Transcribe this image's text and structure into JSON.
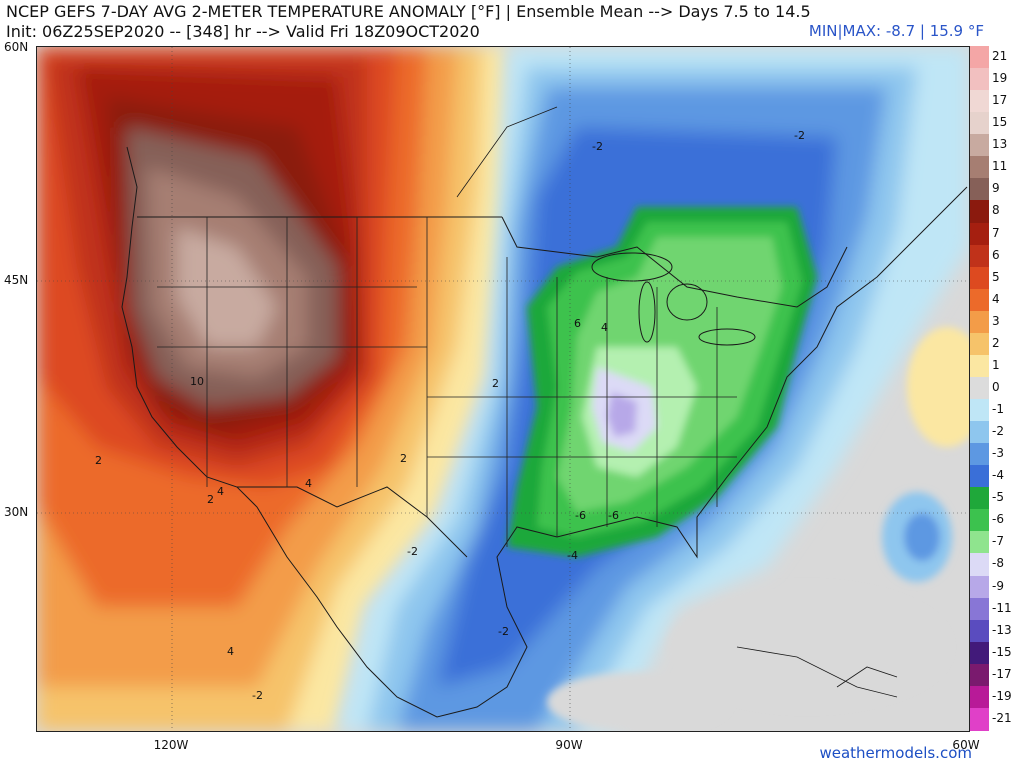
{
  "header": {
    "title": "NCEP GEFS 7-DAY AVG 2-METER TEMPERATURE ANOMALY [°F] | Ensemble Mean --> Days 7.5 to 14.5",
    "init": "Init: 06Z25SEP2020 -- [348] hr --> Valid Fri 18Z09OCT2020",
    "minmax": "MIN|MAX: -8.7 | 15.9 °F"
  },
  "axes": {
    "lat_labels": [
      "60N",
      "45N",
      "30N"
    ],
    "lon_labels": [
      "120W",
      "90W",
      "60W"
    ]
  },
  "credit": "weathermodels.com",
  "contour_labels": [
    "-2",
    "-2",
    "2",
    "2",
    "4",
    "-6",
    "-6",
    "-2",
    "-2",
    "-4",
    "-2",
    "10",
    "2",
    "4",
    "4",
    "6",
    "4",
    "2"
  ],
  "colorbar": {
    "labels": [
      "21",
      "19",
      "17",
      "15",
      "13",
      "11",
      "9",
      "8",
      "7",
      "6",
      "5",
      "4",
      "3",
      "2",
      "1",
      "0",
      "-1",
      "-2",
      "-3",
      "-4",
      "-5",
      "-6",
      "-7",
      "-8",
      "-9",
      "-11",
      "-13",
      "-15",
      "-17",
      "-19",
      "-21"
    ],
    "colors": [
      "#f4a6a6",
      "#f2c0c0",
      "#f0d8d4",
      "#e6d2cc",
      "#c8aaa0",
      "#a67e72",
      "#866058",
      "#8b1a0e",
      "#a51f10",
      "#c0321a",
      "#dd4a20",
      "#ec6a2a",
      "#f39c48",
      "#f6c36a",
      "#fbe7a2",
      "#dcdcdc",
      "#bfe6f6",
      "#8ec6ee",
      "#5d98e2",
      "#3a6fd8",
      "#1fa83a",
      "#3cc24e",
      "#8fe48e",
      "#dcdaf6",
      "#b7a8e8",
      "#8876d6",
      "#5a4cbf",
      "#421a7a",
      "#7a1a6e",
      "#b81a98",
      "#e040c8"
    ]
  },
  "colors": {
    "ocean_neutral": "#d8d8d8",
    "warm_core": "#8a5d52",
    "cold_core": "#2fb84a",
    "border_lines": "#1a1a1a"
  }
}
